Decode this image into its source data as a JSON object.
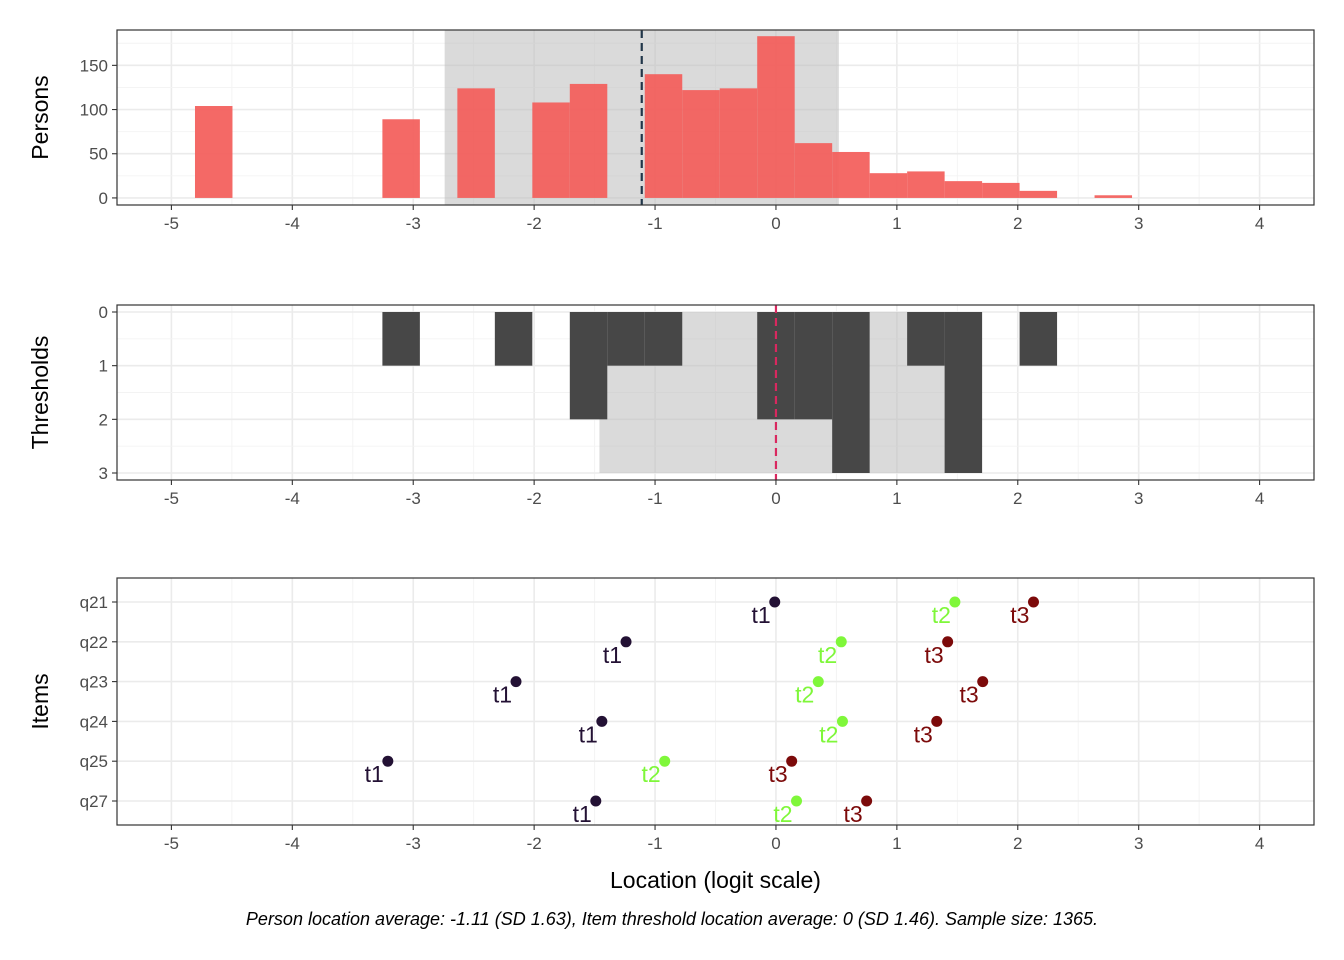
{
  "chart_data": [
    {
      "type": "bar",
      "panel": "persons",
      "ylabel": "Persons",
      "xlim": [
        -5.45,
        4.45
      ],
      "ylim": [
        -8,
        190
      ],
      "x_ticks": [
        -5,
        -4,
        -3,
        -2,
        -1,
        0,
        1,
        2,
        3,
        4
      ],
      "y_ticks": [
        0,
        50,
        100,
        150
      ],
      "bin_width": 0.31,
      "bins": [
        {
          "x": -4.65,
          "value": 104
        },
        {
          "x": -3.1,
          "value": 89
        },
        {
          "x": -2.48,
          "value": 124
        },
        {
          "x": -1.86,
          "value": 108
        },
        {
          "x": -1.55,
          "value": 129
        },
        {
          "x": -0.93,
          "value": 140
        },
        {
          "x": -0.62,
          "value": 122
        },
        {
          "x": -0.31,
          "value": 124
        },
        {
          "x": 0.0,
          "value": 183
        },
        {
          "x": 0.31,
          "value": 62
        },
        {
          "x": 0.62,
          "value": 52
        },
        {
          "x": 0.93,
          "value": 28
        },
        {
          "x": 1.24,
          "value": 30
        },
        {
          "x": 1.55,
          "value": 19
        },
        {
          "x": 1.86,
          "value": 17
        },
        {
          "x": 2.17,
          "value": 8
        },
        {
          "x": 2.79,
          "value": 3
        }
      ],
      "mean": -1.11,
      "sd": 1.63,
      "colors": {
        "bar": "#f35e5a",
        "band": "#bbbbbb",
        "mean_line": "#21364a"
      }
    },
    {
      "type": "bar",
      "panel": "thresholds",
      "ylabel": "Thresholds",
      "y_reversed": true,
      "xlim": [
        -5.45,
        4.45
      ],
      "ylim": [
        0,
        3
      ],
      "x_ticks": [
        -5,
        -4,
        -3,
        -2,
        -1,
        0,
        1,
        2,
        3,
        4
      ],
      "y_ticks": [
        0,
        1,
        2,
        3
      ],
      "bin_width": 0.31,
      "bins": [
        {
          "x": -3.1,
          "value": 1
        },
        {
          "x": -2.17,
          "value": 1
        },
        {
          "x": -1.55,
          "value": 2
        },
        {
          "x": -1.24,
          "value": 1
        },
        {
          "x": -0.93,
          "value": 1
        },
        {
          "x": 0.0,
          "value": 2
        },
        {
          "x": 0.31,
          "value": 2
        },
        {
          "x": 0.62,
          "value": 3
        },
        {
          "x": 1.24,
          "value": 1
        },
        {
          "x": 1.55,
          "value": 3
        },
        {
          "x": 2.17,
          "value": 1
        }
      ],
      "mean": 0,
      "sd": 1.46,
      "colors": {
        "bar": "#474747",
        "band": "#bbbbbb",
        "mean_line": "#d9285f"
      }
    },
    {
      "type": "scatter",
      "panel": "items",
      "ylabel": "Items",
      "xlabel": "Location (logit scale)",
      "xlim": [
        -5.45,
        4.45
      ],
      "x_ticks": [
        -5,
        -4,
        -3,
        -2,
        -1,
        0,
        1,
        2,
        3,
        4
      ],
      "items": [
        "q21",
        "q22",
        "q23",
        "q24",
        "q25",
        "q27"
      ],
      "series": [
        {
          "label": "t1",
          "color": "#231134",
          "values": [
            -0.01,
            -1.24,
            -2.15,
            -1.44,
            -3.21,
            -1.49
          ]
        },
        {
          "label": "t2",
          "color": "#7ff73a",
          "values": [
            1.48,
            0.54,
            0.35,
            0.55,
            -0.92,
            0.17
          ]
        },
        {
          "label": "t3",
          "color": "#7c0a0a",
          "values": [
            2.13,
            1.42,
            1.71,
            1.33,
            0.13,
            0.75
          ]
        }
      ]
    }
  ],
  "caption": "Person location average: -1.11 (SD 1.63), Item threshold location average: 0 (SD 1.46). Sample size: 1365."
}
